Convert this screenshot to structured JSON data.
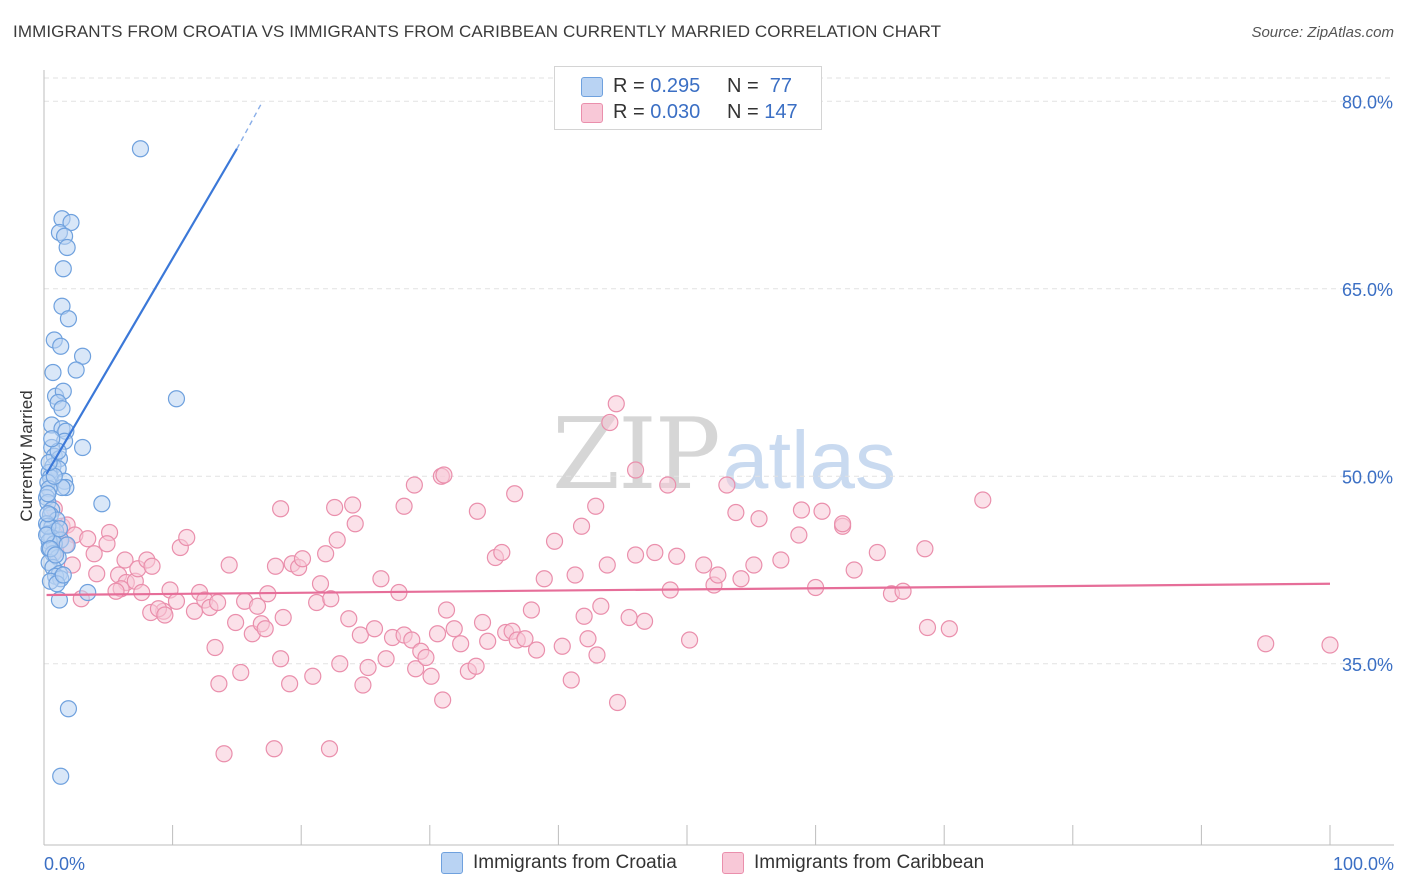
{
  "title": "IMMIGRANTS FROM CROATIA VS IMMIGRANTS FROM CARIBBEAN CURRENTLY MARRIED CORRELATION CHART",
  "source": "Source: ZipAtlas.com",
  "watermark": {
    "zip": "ZIP",
    "atlas": "atlas"
  },
  "legend_top": [
    {
      "r_label": "R = ",
      "r_value": "0.295",
      "n_label": "N = ",
      "n_value": " 77",
      "color": "#6fa1de",
      "fill": "#b9d3f3"
    },
    {
      "r_label": "R = ",
      "r_value": "0.030",
      "n_label": "N = ",
      "n_value": "147",
      "color": "#ea8fac",
      "fill": "#f8c8d7"
    }
  ],
  "legend_bottom": [
    {
      "label": "Immigrants from Croatia",
      "color": "#6fa1de",
      "fill": "#b9d3f3"
    },
    {
      "label": "Immigrants from Caribbean",
      "color": "#ea8fac",
      "fill": "#f8c8d7"
    }
  ],
  "chart_data": {
    "type": "scatter",
    "title": "IMMIGRANTS FROM CROATIA VS IMMIGRANTS FROM CARIBBEAN CURRENTLY MARRIED CORRELATION CHART",
    "xlabel": "",
    "ylabel": "Currently Married",
    "xlim": [
      0,
      100
    ],
    "ylim": [
      20.5,
      82.5
    ],
    "x_tick_labels": [
      "0.0%",
      "100.0%"
    ],
    "y_ticks": [
      35,
      50,
      65,
      80
    ],
    "y_tick_labels": [
      "35.0%",
      "50.0%",
      "65.0%",
      "80.0%"
    ],
    "grid": true,
    "legend_position": "top-center",
    "series": [
      {
        "name": "Immigrants from Croatia",
        "color": "#3b78d8",
        "stroke": "#6fa1de",
        "fill": "#b9d3f3",
        "r": 0.295,
        "n": 77,
        "trend": {
          "x1": 0.2,
          "y1": 50.2,
          "x2": 15.0,
          "y2": 76.2,
          "dash_to_x": 17.0,
          "dash_to_y": 80.0
        },
        "points": [
          [
            7.5,
            76.2
          ],
          [
            1.4,
            70.6
          ],
          [
            2.1,
            70.3
          ],
          [
            1.2,
            69.5
          ],
          [
            1.6,
            69.2
          ],
          [
            1.8,
            68.3
          ],
          [
            1.5,
            66.6
          ],
          [
            1.4,
            63.6
          ],
          [
            1.9,
            62.6
          ],
          [
            0.8,
            60.9
          ],
          [
            1.3,
            60.4
          ],
          [
            3.0,
            59.6
          ],
          [
            2.5,
            58.5
          ],
          [
            0.7,
            58.3
          ],
          [
            0.9,
            56.4
          ],
          [
            1.5,
            56.8
          ],
          [
            1.1,
            55.9
          ],
          [
            1.4,
            55.4
          ],
          [
            10.3,
            56.2
          ],
          [
            0.6,
            54.1
          ],
          [
            1.4,
            53.8
          ],
          [
            1.7,
            53.6
          ],
          [
            1.6,
            52.8
          ],
          [
            0.6,
            52.3
          ],
          [
            3.0,
            52.3
          ],
          [
            0.8,
            51.6
          ],
          [
            1.2,
            51.4
          ],
          [
            0.7,
            50.8
          ],
          [
            1.1,
            50.6
          ],
          [
            0.4,
            50.3
          ],
          [
            0.5,
            49.9
          ],
          [
            0.3,
            49.5
          ],
          [
            1.6,
            49.6
          ],
          [
            1.7,
            49.1
          ],
          [
            1.4,
            49.1
          ],
          [
            0.4,
            49.0
          ],
          [
            0.2,
            48.3
          ],
          [
            0.3,
            47.9
          ],
          [
            4.5,
            47.8
          ],
          [
            0.6,
            47.3
          ],
          [
            0.5,
            46.9
          ],
          [
            1.0,
            46.5
          ],
          [
            0.2,
            46.2
          ],
          [
            0.6,
            45.9
          ],
          [
            0.9,
            45.6
          ],
          [
            0.3,
            45.4
          ],
          [
            0.6,
            45.1
          ],
          [
            1.3,
            44.9
          ],
          [
            0.4,
            44.8
          ],
          [
            0.8,
            44.6
          ],
          [
            1.8,
            44.5
          ],
          [
            0.4,
            44.2
          ],
          [
            0.7,
            43.8
          ],
          [
            1.1,
            43.5
          ],
          [
            0.4,
            43.1
          ],
          [
            0.7,
            42.7
          ],
          [
            1.2,
            42.2
          ],
          [
            0.9,
            42.0
          ],
          [
            1.3,
            41.8
          ],
          [
            0.5,
            41.6
          ],
          [
            1.0,
            41.4
          ],
          [
            3.4,
            40.7
          ],
          [
            1.2,
            40.1
          ],
          [
            1.9,
            31.4
          ],
          [
            1.3,
            26.0
          ],
          [
            0.3,
            46.0
          ],
          [
            0.2,
            45.3
          ],
          [
            0.5,
            44.2
          ],
          [
            0.9,
            43.7
          ],
          [
            1.5,
            42.1
          ],
          [
            0.3,
            48.6
          ],
          [
            0.8,
            50.0
          ],
          [
            0.4,
            51.1
          ],
          [
            1.1,
            52.0
          ],
          [
            0.6,
            53.0
          ],
          [
            0.3,
            47.0
          ],
          [
            1.2,
            45.8
          ]
        ]
      },
      {
        "name": "Immigrants from Caribbean",
        "color": "#e66e99",
        "stroke": "#ea8fac",
        "fill": "#f8c8d7",
        "r": 0.03,
        "n": 147,
        "trend": {
          "x1": 0.2,
          "y1": 40.5,
          "x2": 100.0,
          "y2": 41.4
        },
        "points": [
          [
            0.8,
            47.4
          ],
          [
            1.4,
            46.0
          ],
          [
            1.8,
            46.1
          ],
          [
            2.4,
            45.3
          ],
          [
            1.2,
            44.8
          ],
          [
            1.7,
            44.5
          ],
          [
            0.9,
            44.0
          ],
          [
            2.2,
            42.9
          ],
          [
            3.4,
            45.0
          ],
          [
            3.9,
            43.8
          ],
          [
            4.1,
            42.2
          ],
          [
            5.1,
            45.5
          ],
          [
            4.9,
            44.6
          ],
          [
            5.8,
            42.1
          ],
          [
            6.3,
            43.3
          ],
          [
            6.4,
            41.5
          ],
          [
            6.0,
            41.0
          ],
          [
            7.1,
            41.6
          ],
          [
            7.3,
            42.6
          ],
          [
            7.6,
            40.7
          ],
          [
            8.0,
            43.3
          ],
          [
            8.4,
            42.8
          ],
          [
            2.9,
            40.2
          ],
          [
            5.6,
            40.8
          ],
          [
            9.3,
            39.2
          ],
          [
            8.3,
            39.1
          ],
          [
            8.9,
            39.4
          ],
          [
            9.4,
            38.9
          ],
          [
            9.8,
            40.9
          ],
          [
            10.3,
            40.0
          ],
          [
            10.6,
            44.3
          ],
          [
            11.1,
            45.1
          ],
          [
            11.7,
            39.2
          ],
          [
            12.1,
            40.7
          ],
          [
            12.5,
            40.1
          ],
          [
            12.9,
            39.5
          ],
          [
            13.3,
            36.3
          ],
          [
            13.6,
            33.4
          ],
          [
            13.5,
            39.9
          ],
          [
            14.4,
            42.9
          ],
          [
            14.9,
            38.3
          ],
          [
            15.3,
            34.3
          ],
          [
            15.6,
            40.0
          ],
          [
            16.2,
            37.4
          ],
          [
            16.6,
            39.6
          ],
          [
            16.9,
            38.2
          ],
          [
            17.4,
            40.6
          ],
          [
            17.2,
            37.8
          ],
          [
            18.0,
            42.8
          ],
          [
            18.6,
            38.7
          ],
          [
            18.4,
            35.4
          ],
          [
            19.1,
            33.4
          ],
          [
            19.3,
            43.0
          ],
          [
            19.8,
            42.7
          ],
          [
            20.1,
            43.4
          ],
          [
            20.9,
            34.0
          ],
          [
            21.5,
            41.4
          ],
          [
            21.2,
            39.9
          ],
          [
            21.9,
            43.8
          ],
          [
            22.3,
            40.2
          ],
          [
            22.8,
            44.9
          ],
          [
            23.0,
            35.0
          ],
          [
            23.7,
            38.6
          ],
          [
            24.2,
            46.2
          ],
          [
            24.6,
            37.3
          ],
          [
            24.8,
            33.3
          ],
          [
            25.2,
            34.7
          ],
          [
            25.7,
            37.8
          ],
          [
            26.2,
            41.8
          ],
          [
            26.6,
            35.4
          ],
          [
            27.1,
            37.1
          ],
          [
            27.6,
            40.7
          ],
          [
            28.0,
            37.3
          ],
          [
            28.6,
            36.9
          ],
          [
            29.3,
            36.0
          ],
          [
            28.9,
            34.6
          ],
          [
            29.7,
            35.5
          ],
          [
            30.1,
            34.0
          ],
          [
            30.6,
            37.4
          ],
          [
            31.3,
            39.3
          ],
          [
            31.0,
            32.1
          ],
          [
            31.9,
            37.8
          ],
          [
            32.4,
            36.6
          ],
          [
            33.0,
            34.4
          ],
          [
            33.6,
            34.8
          ],
          [
            34.1,
            38.3
          ],
          [
            34.5,
            36.8
          ],
          [
            35.1,
            43.5
          ],
          [
            35.6,
            43.9
          ],
          [
            35.9,
            37.5
          ],
          [
            36.4,
            37.6
          ],
          [
            36.8,
            36.9
          ],
          [
            37.4,
            37.0
          ],
          [
            37.9,
            39.3
          ],
          [
            38.3,
            36.1
          ],
          [
            38.9,
            41.8
          ],
          [
            39.7,
            44.8
          ],
          [
            40.3,
            36.4
          ],
          [
            41.0,
            33.7
          ],
          [
            41.3,
            42.1
          ],
          [
            42.0,
            38.8
          ],
          [
            42.3,
            37.0
          ],
          [
            43.0,
            35.7
          ],
          [
            43.3,
            39.6
          ],
          [
            43.8,
            42.9
          ],
          [
            44.6,
            31.9
          ],
          [
            45.5,
            38.7
          ],
          [
            46.0,
            43.7
          ],
          [
            46.7,
            38.4
          ],
          [
            47.5,
            43.9
          ],
          [
            48.7,
            40.9
          ],
          [
            49.2,
            43.6
          ],
          [
            50.2,
            36.9
          ],
          [
            51.3,
            42.9
          ],
          [
            52.1,
            41.3
          ],
          [
            52.4,
            42.1
          ],
          [
            53.8,
            47.1
          ],
          [
            55.2,
            42.9
          ],
          [
            55.6,
            46.6
          ],
          [
            57.3,
            43.3
          ],
          [
            58.9,
            47.3
          ],
          [
            60.0,
            41.1
          ],
          [
            60.5,
            47.2
          ],
          [
            62.1,
            46.0
          ],
          [
            63.0,
            42.5
          ],
          [
            64.8,
            43.9
          ],
          [
            65.9,
            40.6
          ],
          [
            66.8,
            40.8
          ],
          [
            68.7,
            37.9
          ],
          [
            70.4,
            37.8
          ],
          [
            73.0,
            48.1
          ],
          [
            46.0,
            50.5
          ],
          [
            48.5,
            49.3
          ],
          [
            54.2,
            41.8
          ],
          [
            58.7,
            45.3
          ],
          [
            62.1,
            46.2
          ],
          [
            18.4,
            47.4
          ],
          [
            24.0,
            47.7
          ],
          [
            28.8,
            49.3
          ],
          [
            30.9,
            50.0
          ],
          [
            31.1,
            50.1
          ],
          [
            36.6,
            48.6
          ],
          [
            42.9,
            47.6
          ],
          [
            44.0,
            54.3
          ],
          [
            44.5,
            55.8
          ],
          [
            41.8,
            46.0
          ],
          [
            14.0,
            27.8
          ],
          [
            17.9,
            28.2
          ],
          [
            22.2,
            28.2
          ],
          [
            100.0,
            36.5
          ],
          [
            95.0,
            36.6
          ],
          [
            68.5,
            44.2
          ],
          [
            53.1,
            49.3
          ],
          [
            28.0,
            47.6
          ],
          [
            33.7,
            47.2
          ],
          [
            22.6,
            47.5
          ]
        ]
      }
    ]
  }
}
